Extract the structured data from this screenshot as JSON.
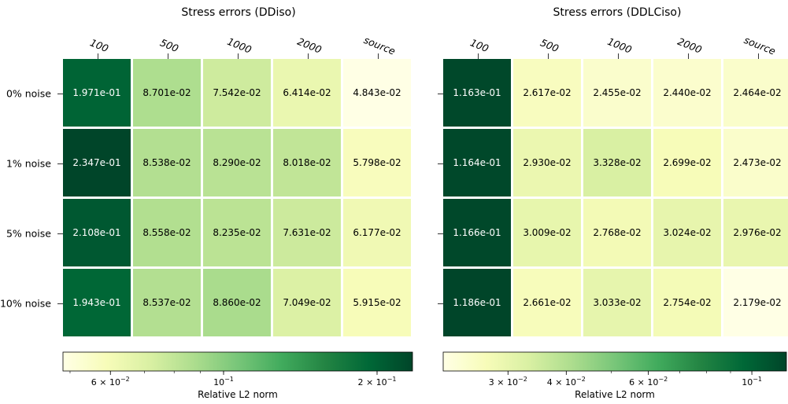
{
  "chart_data": [
    {
      "type": "heatmap",
      "title": "Stress errors (DDiso)",
      "columns": [
        "100",
        "500",
        "1000",
        "2000",
        "source"
      ],
      "rows": [
        "0% noise",
        "1% noise",
        "5% noise",
        "10% noise"
      ],
      "values": [
        [
          0.1971,
          0.08701,
          0.07542,
          0.06414,
          0.04843
        ],
        [
          0.2347,
          0.08538,
          0.0829,
          0.08018,
          0.05798
        ],
        [
          0.2108,
          0.08558,
          0.08235,
          0.07631,
          0.06177
        ],
        [
          0.1943,
          0.08537,
          0.0886,
          0.07049,
          0.05915
        ]
      ],
      "cell_labels": [
        [
          "1.971e-01",
          "8.701e-02",
          "7.542e-02",
          "6.414e-02",
          "4.843e-02"
        ],
        [
          "2.347e-01",
          "8.538e-02",
          "8.290e-02",
          "8.018e-02",
          "5.798e-02"
        ],
        [
          "2.108e-01",
          "8.558e-02",
          "8.235e-02",
          "7.631e-02",
          "6.177e-02"
        ],
        [
          "1.943e-01",
          "8.537e-02",
          "8.860e-02",
          "7.049e-02",
          "5.915e-02"
        ]
      ],
      "colorbar": {
        "label": "Relative L2 norm",
        "scale": "log",
        "range": [
          0.04843,
          0.2347
        ],
        "ticks": [
          {
            "value": 0.06,
            "base": "6 × 10",
            "exp": "−2"
          },
          {
            "value": 0.1,
            "base": "10",
            "exp": "−1"
          },
          {
            "value": 0.2,
            "base": "2 × 10",
            "exp": "−1"
          }
        ]
      },
      "colormap": "YlGn"
    },
    {
      "type": "heatmap",
      "title": "Stress errors (DDLCiso)",
      "columns": [
        "100",
        "500",
        "1000",
        "2000",
        "source"
      ],
      "rows": [
        "0% noise",
        "1% noise",
        "5% noise",
        "10% noise"
      ],
      "values": [
        [
          0.1163,
          0.02617,
          0.02455,
          0.0244,
          0.02464
        ],
        [
          0.1164,
          0.0293,
          0.03328,
          0.02699,
          0.02473
        ],
        [
          0.1166,
          0.03009,
          0.02768,
          0.03024,
          0.02976
        ],
        [
          0.1186,
          0.02661,
          0.03033,
          0.02754,
          0.02179
        ]
      ],
      "cell_labels": [
        [
          "1.163e-01",
          "2.617e-02",
          "2.455e-02",
          "2.440e-02",
          "2.464e-02"
        ],
        [
          "1.164e-01",
          "2.930e-02",
          "3.328e-02",
          "2.699e-02",
          "2.473e-02"
        ],
        [
          "1.166e-01",
          "3.009e-02",
          "2.768e-02",
          "3.024e-02",
          "2.976e-02"
        ],
        [
          "1.186e-01",
          "2.661e-02",
          "3.033e-02",
          "2.754e-02",
          "2.179e-02"
        ]
      ],
      "colorbar": {
        "label": "Relative L2 norm",
        "scale": "log",
        "range": [
          0.02179,
          0.1186
        ],
        "ticks": [
          {
            "value": 0.03,
            "base": "3 × 10",
            "exp": "−2"
          },
          {
            "value": 0.04,
            "base": "4 × 10",
            "exp": "−2"
          },
          {
            "value": 0.06,
            "base": "6 × 10",
            "exp": "−2"
          },
          {
            "value": 0.1,
            "base": "10",
            "exp": "−1"
          }
        ]
      },
      "colormap": "YlGn"
    }
  ]
}
